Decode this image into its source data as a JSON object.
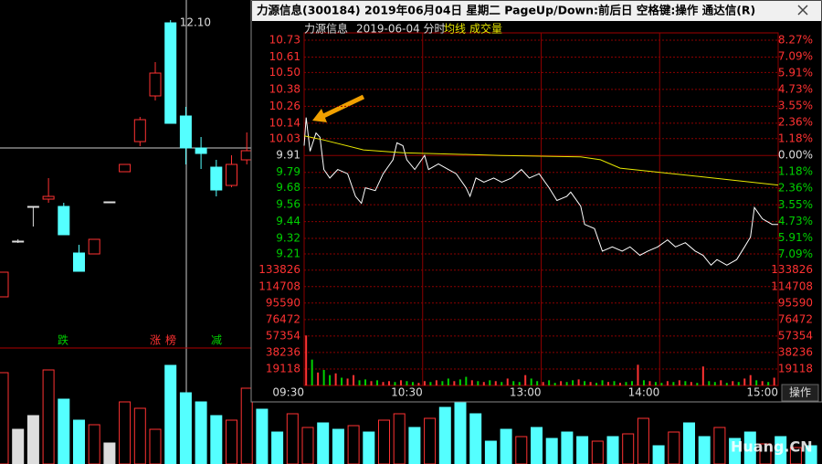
{
  "window": {
    "title": "力源信息(300184) 2019年06月04日 星期二 PageUp/Down:前后日 空格键:操作 通达信(R)",
    "button": "操作",
    "watermark": "Huang.CN"
  },
  "chart_data": [
    {
      "type": "line",
      "title": "力源信息",
      "subtitle": "2019-06-04 分时",
      "xlim": [
        0,
        240
      ],
      "xticks": [
        {
          "value": 0,
          "label": "09:30"
        },
        {
          "value": 60,
          "label": "10:30"
        },
        {
          "value": 120,
          "label": "13:00"
        },
        {
          "value": 180,
          "label": "14:00"
        },
        {
          "value": 240,
          "label": "15:00"
        }
      ],
      "ylim": [
        9.145,
        10.782
      ],
      "yticks": [
        10.73,
        10.61,
        {
          "value": 10.5,
          "label": "10.50"
        },
        10.38,
        10.26,
        10.14,
        10.03,
        9.91,
        9.79,
        9.68,
        9.56,
        9.44,
        9.32,
        9.21
      ],
      "y2lim": [
        -7.72,
        8.8
      ],
      "y2ticks": [
        {
          "value": 8.27,
          "label": "8.27%"
        },
        {
          "value": 7.09,
          "label": "7.09%"
        },
        {
          "value": 5.91,
          "label": "5.91%"
        },
        {
          "value": 4.73,
          "label": "4.73%"
        },
        {
          "value": 3.55,
          "label": "3.55%"
        },
        {
          "value": 2.36,
          "label": "2.36%"
        },
        {
          "value": 1.18,
          "label": "1.18%"
        },
        {
          "value": 0,
          "label": "0.00%"
        },
        {
          "value": -1.18,
          "label": "1.18%"
        },
        {
          "value": -2.36,
          "label": "2.36%"
        },
        {
          "value": -3.55,
          "label": "3.55%"
        },
        {
          "value": -4.73,
          "label": "4.73%"
        },
        {
          "value": -5.91,
          "label": "5.91%"
        },
        {
          "value": -7.09,
          "label": "7.09%"
        }
      ],
      "grid": true,
      "series": [
        {
          "color": "#ffffff",
          "x": [
            0,
            1,
            3,
            6,
            8,
            10,
            13,
            17,
            22,
            26,
            29,
            31,
            36,
            40,
            45,
            47,
            50,
            52,
            56,
            61,
            63,
            68,
            73,
            77,
            82,
            84,
            87,
            91,
            96,
            100,
            105,
            110,
            114,
            119,
            124,
            128,
            133,
            135,
            140,
            142,
            147,
            151,
            156,
            161,
            165,
            170,
            174,
            179,
            184,
            188,
            193,
            198,
            202,
            206,
            209,
            214,
            219,
            223,
            226,
            228,
            232,
            237,
            240
          ],
          "values": [
            9.98,
            10.18,
            9.94,
            10.07,
            10.04,
            9.81,
            9.75,
            9.81,
            9.78,
            9.62,
            9.57,
            9.68,
            9.66,
            9.78,
            9.88,
            10.0,
            9.98,
            9.88,
            9.81,
            9.91,
            9.81,
            9.85,
            9.81,
            9.78,
            9.68,
            9.62,
            9.75,
            9.72,
            9.75,
            9.72,
            9.75,
            9.81,
            9.75,
            9.78,
            9.68,
            9.59,
            9.62,
            9.65,
            9.55,
            9.42,
            9.39,
            9.23,
            9.26,
            9.23,
            9.26,
            9.2,
            9.23,
            9.26,
            9.31,
            9.26,
            9.29,
            9.23,
            9.2,
            9.13,
            9.17,
            9.13,
            9.17,
            9.26,
            9.33,
            9.54,
            9.46,
            9.42,
            9.42
          ]
        },
        {
          "name": "均线",
          "color": "#e8e800",
          "x": [
            0,
            10,
            30,
            50,
            100,
            140,
            150,
            160,
            200,
            240
          ],
          "values": [
            10.05,
            10.02,
            9.95,
            9.93,
            9.91,
            9.9,
            9.88,
            9.82,
            9.76,
            9.7
          ]
        }
      ],
      "volume": {
        "name": "成交量",
        "ylim": [
          0,
          142000
        ],
        "yticks": [
          133826,
          114708,
          95590,
          76472,
          57354,
          38236,
          19118
        ],
        "x": [
          1,
          4,
          7,
          10,
          13,
          16,
          19,
          22,
          25,
          28,
          31,
          34,
          37,
          40,
          43,
          46,
          49,
          52,
          55,
          58,
          61,
          64,
          67,
          70,
          73,
          76,
          79,
          82,
          85,
          88,
          91,
          94,
          97,
          100,
          103,
          106,
          109,
          112,
          115,
          118,
          121,
          124,
          127,
          130,
          133,
          136,
          139,
          142,
          145,
          148,
          151,
          154,
          157,
          160,
          163,
          166,
          169,
          172,
          175,
          178,
          181,
          184,
          187,
          190,
          193,
          196,
          199,
          202,
          205,
          208,
          211,
          214,
          217,
          220,
          223,
          226,
          229,
          232,
          235,
          238
        ],
        "values": [
          58000,
          30000,
          15000,
          18000,
          12000,
          14000,
          9000,
          8000,
          12000,
          6000,
          7000,
          5000,
          6000,
          4000,
          5000,
          4000,
          6000,
          5000,
          4000,
          3000,
          5000,
          4000,
          6000,
          5000,
          8000,
          5000,
          7000,
          10000,
          6000,
          5000,
          4000,
          6000,
          5000,
          4000,
          8000,
          5000,
          4000,
          12000,
          8000,
          5000,
          4000,
          6000,
          3000,
          5000,
          4000,
          6000,
          7000,
          5000,
          4000,
          3000,
          6000,
          4000,
          5000,
          3000,
          4000,
          5000,
          24000,
          6000,
          5000,
          4000,
          3000,
          5000,
          4000,
          6000,
          5000,
          4000,
          3000,
          22000,
          5000,
          4000,
          6000,
          3000,
          5000,
          4000,
          8000,
          12000,
          6000,
          5000,
          4000,
          9000
        ],
        "colors": [
          "#ff3232",
          "#00d000",
          "#ff3232",
          "#00d000",
          "#00d000",
          "#ff3232",
          "#00d000",
          "#ff3232",
          "#ff3232",
          "#00d000",
          "#00d000",
          "#ff3232",
          "#00d000",
          "#ff3232",
          "#ff3232",
          "#00d000",
          "#ff3232",
          "#00d000",
          "#00d000",
          "#ff3232",
          "#ff3232",
          "#00d000",
          "#ff3232",
          "#00d000",
          "#00d000",
          "#ff3232",
          "#00d000",
          "#00d000",
          "#ff3232",
          "#00d000",
          "#ff3232",
          "#00d000",
          "#ff3232",
          "#00d000",
          "#ff3232",
          "#00d000",
          "#00d000",
          "#ff3232",
          "#00d000",
          "#00d000",
          "#ff3232",
          "#00d000",
          "#00d000",
          "#ff3232",
          "#00d000",
          "#00d000",
          "#ff3232",
          "#00d000",
          "#ff3232",
          "#00d000",
          "#00d000",
          "#ff3232",
          "#00d000",
          "#ff3232",
          "#00d000",
          "#00d000",
          "#ff3232",
          "#00d000",
          "#ff3232",
          "#00d000",
          "#00d000",
          "#ff3232",
          "#00d000",
          "#ff3232",
          "#00d000",
          "#ff3232",
          "#00d000",
          "#ff3232",
          "#00d000",
          "#00d000",
          "#ff3232",
          "#00d000",
          "#ff3232",
          "#00d000",
          "#ff3232",
          "#ff3232",
          "#00d000",
          "#ff3232",
          "#00d000",
          "#ff3232"
        ]
      }
    },
    {
      "type": "candlestick",
      "ylim": [
        8.52,
        12.32
      ],
      "open": [
        9.07,
        9.68,
        10.06,
        10.14,
        10.06,
        9.55,
        9.54,
        10.11,
        10.44,
        10.77,
        11.27,
        12.07,
        11.05,
        10.7,
        10.49,
        10.29,
        10.57
      ],
      "close": [
        9.34,
        9.68,
        10.06,
        10.17,
        9.75,
        9.35,
        9.7,
        10.11,
        10.52,
        11.01,
        11.52,
        10.97,
        10.7,
        10.64,
        10.24,
        10.52,
        10.67
      ],
      "high": [
        9.34,
        9.7,
        10.06,
        10.37,
        10.1,
        9.64,
        9.7,
        10.11,
        10.52,
        11.04,
        11.64,
        12.1,
        11.15,
        10.82,
        10.57,
        10.62,
        10.87
      ],
      "low": [
        9.07,
        9.66,
        9.84,
        10.1,
        9.75,
        9.35,
        9.54,
        10.11,
        10.44,
        10.72,
        11.22,
        10.97,
        10.52,
        10.47,
        10.17,
        10.27,
        10.52
      ],
      "high_labels": [
        null,
        null,
        null,
        null,
        null,
        null,
        null,
        null,
        null,
        null,
        null,
        "12.10",
        null,
        null,
        null,
        null,
        null
      ],
      "annotations": [
        "跌",
        "涨",
        "榜",
        "减"
      ],
      "volume": {
        "ylim": [
          0,
          113000
        ],
        "values": [
          100000,
          38000,
          53000,
          103000,
          71000,
          48000,
          43000,
          23000,
          68000,
          61000,
          38000,
          108000,
          78000,
          68000,
          53000,
          48000,
          83000,
          60000,
          35000,
          55000,
          40000,
          45000,
          38000,
          42000,
          35000,
          48000,
          55000,
          40000,
          50000,
          62000,
          70000,
          55000,
          25000,
          38000,
          30000,
          40000,
          28000,
          35000,
          30000,
          25000,
          30000,
          33000,
          50000,
          20000,
          35000,
          45000,
          30000,
          40000,
          28000,
          35000,
          22000,
          30000,
          18000,
          20000
        ],
        "colors": [
          "#ff3232",
          "#dddddd",
          "#dddddd",
          "#ff3232",
          "#54ffff",
          "#54ffff",
          "#ff3232",
          "#dddddd",
          "#ff3232",
          "#ff3232",
          "#ff3232",
          "#54ffff",
          "#54ffff",
          "#54ffff",
          "#54ffff",
          "#ff3232",
          "#ff3232",
          "#54ffff",
          "#54ffff",
          "#ff3232",
          "#ff3232",
          "#54ffff",
          "#54ffff",
          "#ff3232",
          "#54ffff",
          "#ff3232",
          "#ff3232",
          "#54ffff",
          "#ff3232",
          "#54ffff",
          "#54ffff",
          "#54ffff",
          "#54ffff",
          "#54ffff",
          "#ff3232",
          "#54ffff",
          "#54ffff",
          "#54ffff",
          "#54ffff",
          "#ff3232",
          "#54ffff",
          "#ff3232",
          "#ff3232",
          "#54ffff",
          "#ff3232",
          "#54ffff",
          "#54ffff",
          "#ff3232",
          "#54ffff",
          "#54ffff",
          "#ff3232",
          "#54ffff",
          "#ff3232",
          "#54ffff"
        ]
      }
    }
  ]
}
